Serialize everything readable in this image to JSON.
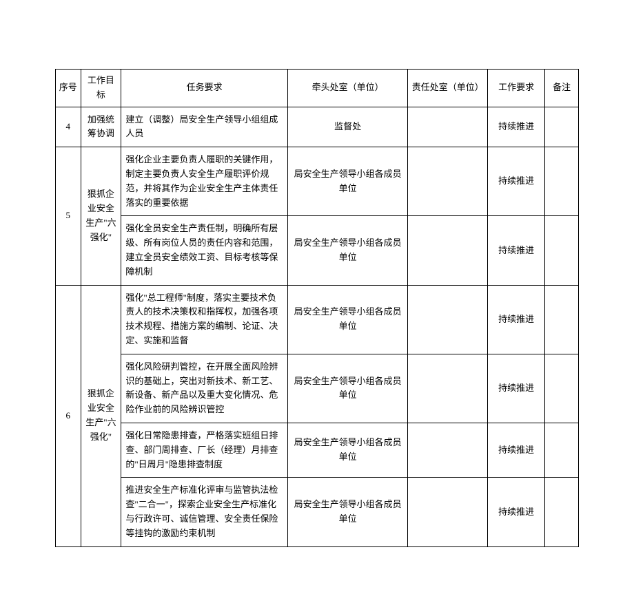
{
  "headers": {
    "seq": "序号",
    "goal": "工作目标",
    "task": "任务要求",
    "lead": "牵头处室（单位）",
    "resp": "责任处室（单位）",
    "req": "工作要求",
    "note": "备注"
  },
  "rows": {
    "r4": {
      "seq": "4",
      "goal": "加强统筹协调",
      "task": "建立（调整）局安全生产领导小组组成人员",
      "lead": "监督处",
      "resp": "",
      "req": "持续推进",
      "note": ""
    },
    "r5": {
      "seq": "5",
      "goal": "狠抓企业安全生产\"六强化\"",
      "sub1": {
        "task": "强化企业主要负责人履职的关键作用，制定主要负责人安全生产履职评价规范，并将其作为企业安全生产主体责任落实的重要依据",
        "lead": "局安全生产领导小组各成员单位",
        "resp": "",
        "req": "持续推进",
        "note": ""
      },
      "sub2": {
        "task": "强化全员安全生产责任制，明确所有层级、所有岗位人员的责任内容和范围，建立全员安全绩效工资、目标考核等保障机制",
        "lead": "局安全生产领导小组各成员单位",
        "resp": "",
        "req": "持续推进",
        "note": ""
      }
    },
    "r6": {
      "seq": "6",
      "goal": "狠抓企业安全生产\"六强化\"",
      "sub1": {
        "task": "强化\"总工程师\"制度，落实主要技术负责人的技术决策权和指挥权，加强各项技术规程、措施方案的编制、论证、决定、实施和监督",
        "lead": "局安全生产领导小组各成员单位",
        "resp": "",
        "req": "持续推进",
        "note": ""
      },
      "sub2": {
        "task": "强化风险研判管控，在开展全面风险辨识的基础上，突出对新技术、新工艺、新设备、新产品以及重大变化情况、危险作业前的风险辨识管控",
        "lead": "局安全生产领导小组各成员单位",
        "resp": "",
        "req": "持续推进",
        "note": ""
      },
      "sub3": {
        "task": "强化日常隐患排查，严格落实班组日排查、部门周排查、厂长（经理）月排查的\"日周月\"隐患排查制度",
        "lead": "局安全生产领导小组各成员单位",
        "resp": "",
        "req": "持续推进",
        "note": ""
      },
      "sub4": {
        "task": "推进安全生产标准化评审与监管执法检查\"二合一\"，探索企业安全生产标准化与行政许可、诚信管理、安全责任保险等挂钩的激励约束机制",
        "lead": "局安全生产领导小组各成员单位",
        "resp": "",
        "req": "持续推进",
        "note": ""
      }
    }
  }
}
